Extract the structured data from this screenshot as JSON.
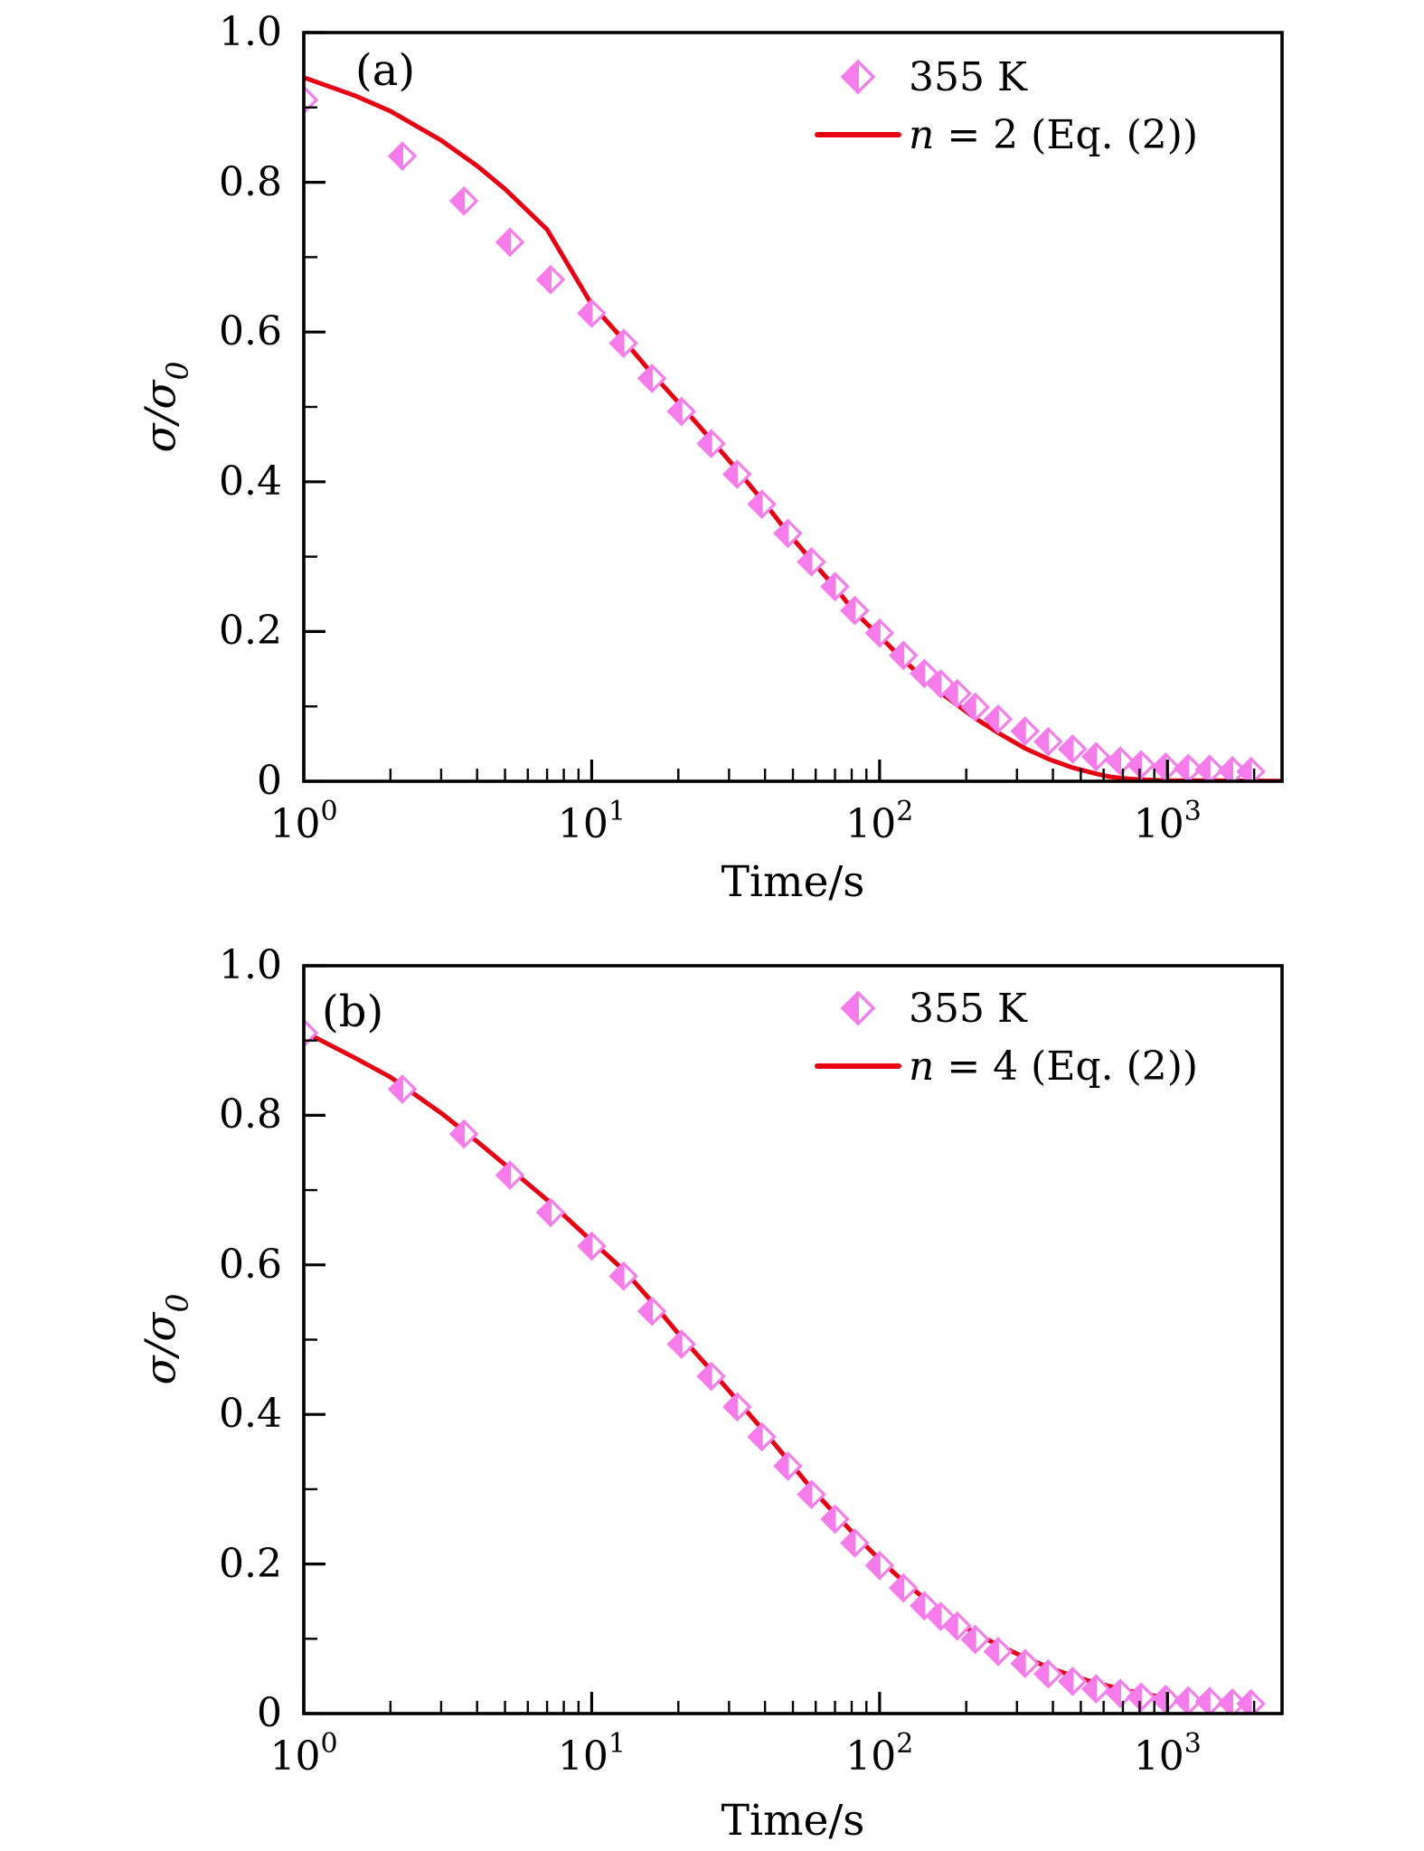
{
  "figure": {
    "background": "#ffffff",
    "marker_color": "#f57cea",
    "line_color": "#e60012",
    "axis_color": "#000000",
    "text_color": "#000000"
  },
  "chart_data": [
    {
      "id": "a",
      "type": "scatter",
      "panel_label": "(a)",
      "xlabel": "Time/s",
      "ylabel_main": "σ/σ",
      "ylabel_sub": "0",
      "x_scale": "log",
      "xlim": [
        1,
        2500
      ],
      "ylim": [
        0,
        1.0
      ],
      "grid": false,
      "legend_position": "upper right",
      "xticks": [
        1,
        10,
        100,
        1000
      ],
      "xtick_labels": [
        {
          "base": "10",
          "exp": "0"
        },
        {
          "base": "10",
          "exp": "1"
        },
        {
          "base": "10",
          "exp": "2"
        },
        {
          "base": "10",
          "exp": "3"
        }
      ],
      "yticks": [
        0,
        0.2,
        0.4,
        0.6,
        0.8,
        1.0
      ],
      "ytick_labels": [
        "0",
        "0.2",
        "0.4",
        "0.6",
        "0.8",
        "1.0"
      ],
      "legend": [
        {
          "type": "marker",
          "label": "355 K"
        },
        {
          "type": "line",
          "label_var": "n",
          "label_rest": " = 2 (Eq. (2))"
        }
      ],
      "series": [
        {
          "name": "355 K",
          "kind": "scatter",
          "marker": "half-filled-diamond",
          "points": [
            [
              1,
              0.91
            ],
            [
              2.2,
              0.835
            ],
            [
              3.6,
              0.775
            ],
            [
              5.2,
              0.72
            ],
            [
              7.2,
              0.67
            ],
            [
              10,
              0.625
            ],
            [
              12.9,
              0.585
            ],
            [
              16.2,
              0.538
            ],
            [
              20.5,
              0.494
            ],
            [
              26,
              0.451
            ],
            [
              32,
              0.41
            ],
            [
              39,
              0.37
            ],
            [
              48,
              0.331
            ],
            [
              58,
              0.293
            ],
            [
              70,
              0.26
            ],
            [
              82,
              0.228
            ],
            [
              100,
              0.198
            ],
            [
              121,
              0.168
            ],
            [
              143,
              0.144
            ],
            [
              163,
              0.13
            ],
            [
              186,
              0.117
            ],
            [
              215,
              0.099
            ],
            [
              258,
              0.083
            ],
            [
              320,
              0.067
            ],
            [
              385,
              0.053
            ],
            [
              468,
              0.043
            ],
            [
              565,
              0.033
            ],
            [
              685,
              0.027
            ],
            [
              810,
              0.022
            ],
            [
              985,
              0.019
            ],
            [
              1180,
              0.017
            ],
            [
              1400,
              0.016
            ],
            [
              1680,
              0.014
            ],
            [
              1950,
              0.013
            ]
          ]
        },
        {
          "name": "n = 2 (Eq. (2))",
          "kind": "line",
          "points": [
            [
              1,
              0.94
            ],
            [
              1.5,
              0.916
            ],
            [
              2,
              0.895
            ],
            [
              3,
              0.856
            ],
            [
              4,
              0.822
            ],
            [
              5,
              0.791
            ],
            [
              7,
              0.737
            ],
            [
              10,
              0.637
            ],
            [
              13,
              0.588
            ],
            [
              16,
              0.547
            ],
            [
              20,
              0.506
            ],
            [
              26,
              0.456
            ],
            [
              32,
              0.416
            ],
            [
              40,
              0.371
            ],
            [
              48,
              0.332
            ],
            [
              58,
              0.295
            ],
            [
              70,
              0.259
            ],
            [
              82,
              0.226
            ],
            [
              100,
              0.194
            ],
            [
              120,
              0.163
            ],
            [
              143,
              0.137
            ],
            [
              170,
              0.113
            ],
            [
              215,
              0.084
            ],
            [
              260,
              0.064
            ],
            [
              320,
              0.044
            ],
            [
              390,
              0.029
            ],
            [
              470,
              0.018
            ],
            [
              565,
              0.01
            ],
            [
              630,
              0.006
            ],
            [
              700,
              0.004
            ],
            [
              810,
              0.002
            ],
            [
              1000,
              0.001
            ],
            [
              1400,
              0.001
            ],
            [
              2000,
              0.0005
            ],
            [
              2450,
              0.0004
            ]
          ]
        }
      ]
    },
    {
      "id": "b",
      "type": "scatter",
      "panel_label": "(b)",
      "xlabel": "Time/s",
      "ylabel_main": "σ/σ",
      "ylabel_sub": "0",
      "x_scale": "log",
      "xlim": [
        1,
        2500
      ],
      "ylim": [
        0,
        1.0
      ],
      "grid": false,
      "legend_position": "upper right",
      "xticks": [
        1,
        10,
        100,
        1000
      ],
      "xtick_labels": [
        {
          "base": "10",
          "exp": "0"
        },
        {
          "base": "10",
          "exp": "1"
        },
        {
          "base": "10",
          "exp": "2"
        },
        {
          "base": "10",
          "exp": "3"
        }
      ],
      "yticks": [
        0,
        0.2,
        0.4,
        0.6,
        0.8,
        1.0
      ],
      "ytick_labels": [
        "0",
        "0.2",
        "0.4",
        "0.6",
        "0.8",
        "1.0"
      ],
      "legend": [
        {
          "type": "marker",
          "label": "355 K"
        },
        {
          "type": "line",
          "label_var": "n",
          "label_rest": " = 4 (Eq. (2))"
        }
      ],
      "series": [
        {
          "name": "355 K",
          "kind": "scatter",
          "marker": "half-filled-diamond",
          "points": [
            [
              1,
              0.91
            ],
            [
              2.2,
              0.835
            ],
            [
              3.6,
              0.775
            ],
            [
              5.2,
              0.72
            ],
            [
              7.2,
              0.67
            ],
            [
              10,
              0.625
            ],
            [
              12.9,
              0.585
            ],
            [
              16.2,
              0.538
            ],
            [
              20.5,
              0.494
            ],
            [
              26,
              0.451
            ],
            [
              32,
              0.41
            ],
            [
              39,
              0.37
            ],
            [
              48,
              0.331
            ],
            [
              58,
              0.293
            ],
            [
              70,
              0.26
            ],
            [
              82,
              0.228
            ],
            [
              100,
              0.198
            ],
            [
              121,
              0.168
            ],
            [
              143,
              0.144
            ],
            [
              163,
              0.13
            ],
            [
              186,
              0.117
            ],
            [
              215,
              0.099
            ],
            [
              258,
              0.083
            ],
            [
              320,
              0.067
            ],
            [
              385,
              0.053
            ],
            [
              468,
              0.043
            ],
            [
              565,
              0.033
            ],
            [
              685,
              0.027
            ],
            [
              810,
              0.022
            ],
            [
              985,
              0.019
            ],
            [
              1180,
              0.017
            ],
            [
              1400,
              0.016
            ],
            [
              1680,
              0.014
            ],
            [
              1950,
              0.013
            ]
          ]
        },
        {
          "name": "n = 4 (Eq. (2))",
          "kind": "line",
          "points": [
            [
              1,
              0.912
            ],
            [
              1.5,
              0.877
            ],
            [
              2,
              0.851
            ],
            [
              3,
              0.803
            ],
            [
              4,
              0.765
            ],
            [
              5,
              0.734
            ],
            [
              7,
              0.687
            ],
            [
              10,
              0.632
            ],
            [
              13,
              0.592
            ],
            [
              16,
              0.553
            ],
            [
              20,
              0.508
            ],
            [
              26,
              0.459
            ],
            [
              32,
              0.419
            ],
            [
              40,
              0.376
            ],
            [
              48,
              0.339
            ],
            [
              58,
              0.301
            ],
            [
              70,
              0.267
            ],
            [
              82,
              0.239
            ],
            [
              100,
              0.206
            ],
            [
              120,
              0.178
            ],
            [
              143,
              0.154
            ],
            [
              170,
              0.132
            ],
            [
              215,
              0.107
            ],
            [
              260,
              0.091
            ],
            [
              320,
              0.075
            ],
            [
              390,
              0.061
            ],
            [
              470,
              0.05
            ],
            [
              565,
              0.041
            ],
            [
              685,
              0.033
            ],
            [
              810,
              0.027
            ],
            [
              985,
              0.021
            ],
            [
              1180,
              0.017
            ],
            [
              1400,
              0.014
            ],
            [
              1680,
              0.012
            ],
            [
              1950,
              0.011
            ]
          ]
        }
      ]
    }
  ]
}
